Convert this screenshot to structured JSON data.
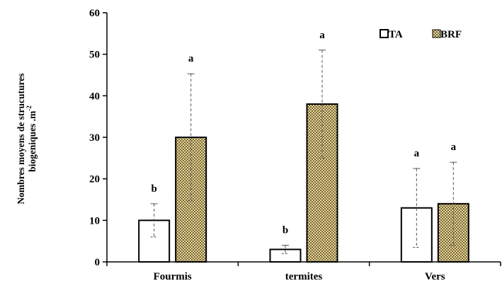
{
  "chart_data": {
    "type": "bar",
    "categories": [
      "Fourmis",
      "termites",
      "Vers"
    ],
    "series": [
      {
        "name": "TA",
        "values": [
          10,
          3,
          13
        ],
        "errors": [
          4,
          1,
          9.5
        ],
        "letters": [
          "b",
          "b",
          "a"
        ],
        "fill": "#ffffff"
      },
      {
        "name": "BRF",
        "values": [
          30,
          38,
          14
        ],
        "errors": [
          15.3,
          13,
          10
        ],
        "letters": [
          "a",
          "a",
          "a"
        ],
        "fill": "#d9c27a"
      }
    ],
    "ylabel_line1": "Nombres moyens de strucutures",
    "ylabel_line2": "biogeniques .m",
    "ylabel_sup": "-2",
    "ylim": [
      0,
      60
    ],
    "yticks": [
      "0",
      "10",
      "20",
      "30",
      "40",
      "50",
      "60"
    ],
    "legend_position": "top-right",
    "grid": false
  }
}
